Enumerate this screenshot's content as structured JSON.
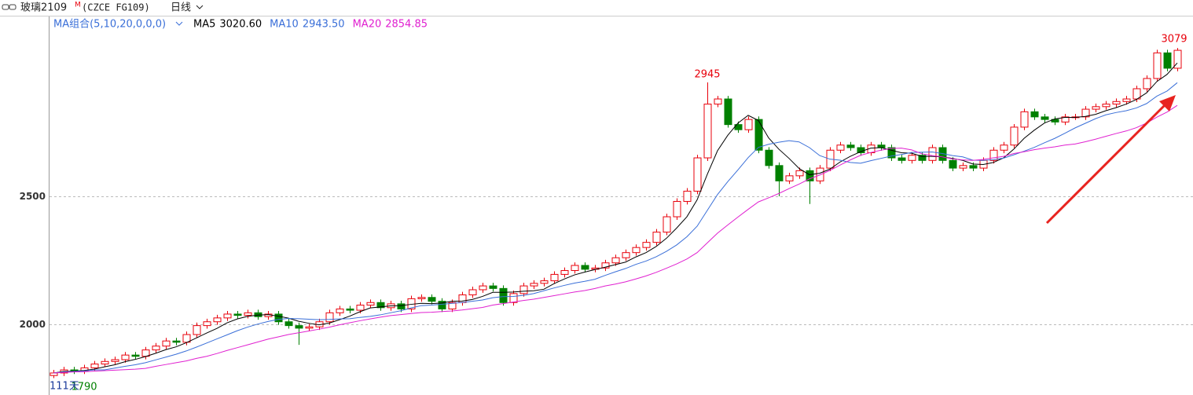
{
  "chart_data": {
    "type": "candlestick",
    "title": "玻璃2109",
    "title_sup": "M",
    "contract": "(CZCE FG109)",
    "period": "日线",
    "indicator_label": "MA组合(5,10,20,0,0,0)",
    "day_count": "111天",
    "up_color": "#e8000b",
    "down_color": "#008000",
    "ylim": [
      1724,
      3199
    ],
    "yticks": [
      2000,
      2500
    ],
    "grid": true,
    "open": [
      1800,
      1810,
      1822,
      1818,
      1830,
      1845,
      1855,
      1862,
      1880,
      1875,
      1900,
      1915,
      1935,
      1930,
      1960,
      1995,
      2010,
      2025,
      2040,
      2035,
      2045,
      2030,
      2040,
      2010,
      1995,
      1985,
      1990,
      2010,
      2045,
      2060,
      2055,
      2075,
      2085,
      2065,
      2080,
      2060,
      2100,
      2105,
      2090,
      2060,
      2085,
      2115,
      2135,
      2150,
      2140,
      2085,
      2120,
      2150,
      2160,
      2170,
      2195,
      2210,
      2230,
      2215,
      2220,
      2240,
      2260,
      2280,
      2300,
      2320,
      2360,
      2420,
      2480,
      2520,
      2650,
      2860,
      2880,
      2780,
      2760,
      2800,
      2680,
      2620,
      2560,
      2580,
      2600,
      2560,
      2610,
      2680,
      2700,
      2690,
      2670,
      2700,
      2690,
      2650,
      2640,
      2660,
      2640,
      2690,
      2640,
      2610,
      2620,
      2610,
      2640,
      2680,
      2700,
      2770,
      2830,
      2810,
      2800,
      2790,
      2810,
      2810,
      2840,
      2850,
      2860,
      2870,
      2880,
      2920,
      2960,
      3060,
      3000
    ],
    "close": [
      1810,
      1822,
      1818,
      1830,
      1845,
      1855,
      1862,
      1880,
      1875,
      1900,
      1915,
      1935,
      1930,
      1960,
      1995,
      2010,
      2025,
      2040,
      2035,
      2045,
      2030,
      2040,
      2010,
      1995,
      1985,
      1990,
      2010,
      2045,
      2060,
      2055,
      2075,
      2085,
      2065,
      2080,
      2060,
      2100,
      2105,
      2090,
      2060,
      2085,
      2115,
      2135,
      2150,
      2140,
      2085,
      2120,
      2150,
      2160,
      2170,
      2195,
      2210,
      2230,
      2215,
      2220,
      2240,
      2260,
      2280,
      2300,
      2320,
      2360,
      2420,
      2480,
      2520,
      2650,
      2860,
      2880,
      2780,
      2760,
      2800,
      2680,
      2620,
      2560,
      2580,
      2600,
      2560,
      2610,
      2680,
      2700,
      2690,
      2670,
      2700,
      2690,
      2650,
      2640,
      2660,
      2640,
      2690,
      2640,
      2610,
      2620,
      2610,
      2640,
      2680,
      2700,
      2770,
      2830,
      2810,
      2800,
      2790,
      2810,
      2810,
      2840,
      2850,
      2860,
      2870,
      2880,
      2920,
      2960,
      3060,
      3000,
      3070
    ],
    "high": [
      1822,
      1834,
      1834,
      1842,
      1857,
      1867,
      1874,
      1892,
      1892,
      1912,
      1927,
      1947,
      1947,
      1972,
      2007,
      2022,
      2037,
      2052,
      2052,
      2057,
      2057,
      2052,
      2052,
      2022,
      2007,
      2002,
      2022,
      2057,
      2072,
      2072,
      2087,
      2097,
      2097,
      2092,
      2092,
      2112,
      2117,
      2117,
      2102,
      2097,
      2127,
      2147,
      2162,
      2162,
      2152,
      2132,
      2162,
      2172,
      2182,
      2207,
      2222,
      2242,
      2242,
      2232,
      2252,
      2272,
      2292,
      2312,
      2332,
      2372,
      2432,
      2492,
      2532,
      2662,
      2945,
      2892,
      2892,
      2792,
      2812,
      2812,
      2692,
      2632,
      2592,
      2612,
      2612,
      2622,
      2692,
      2712,
      2712,
      2702,
      2712,
      2712,
      2702,
      2662,
      2672,
      2672,
      2702,
      2702,
      2652,
      2632,
      2632,
      2652,
      2692,
      2712,
      2782,
      2842,
      2842,
      2822,
      2812,
      2822,
      2822,
      2852,
      2862,
      2872,
      2882,
      2892,
      2932,
      2972,
      3072,
      3072,
      3079
    ],
    "low": [
      1790,
      1798,
      1806,
      1806,
      1818,
      1833,
      1843,
      1850,
      1863,
      1863,
      1888,
      1903,
      1918,
      1918,
      1948,
      1983,
      1998,
      2013,
      2023,
      2023,
      2018,
      2018,
      1998,
      1983,
      1920,
      1973,
      1978,
      1998,
      2033,
      2043,
      2043,
      2063,
      2053,
      2053,
      2048,
      2048,
      2088,
      2078,
      2048,
      2048,
      2073,
      2103,
      2123,
      2128,
      2073,
      2073,
      2108,
      2138,
      2148,
      2158,
      2183,
      2198,
      2203,
      2203,
      2208,
      2228,
      2248,
      2268,
      2288,
      2308,
      2348,
      2408,
      2468,
      2508,
      2638,
      2848,
      2768,
      2748,
      2748,
      2668,
      2608,
      2500,
      2548,
      2568,
      2470,
      2548,
      2598,
      2668,
      2678,
      2658,
      2658,
      2678,
      2638,
      2628,
      2628,
      2628,
      2628,
      2628,
      2598,
      2598,
      2598,
      2598,
      2628,
      2668,
      2688,
      2758,
      2798,
      2788,
      2778,
      2778,
      2798,
      2798,
      2828,
      2838,
      2848,
      2858,
      2868,
      2908,
      2948,
      2988,
      2988
    ],
    "series": [
      {
        "name": "MA5",
        "color": "#000000",
        "last_label": "3020.60",
        "values": [
          1810,
          1816,
          1817,
          1820,
          1825,
          1834,
          1842,
          1854,
          1863,
          1874,
          1887,
          1901,
          1912,
          1928,
          1947,
          1966,
          1984,
          2006,
          2021,
          2031,
          2036,
          2038,
          2032,
          2024,
          2012,
          2004,
          1998,
          2005,
          2018,
          2032,
          2049,
          2064,
          2068,
          2072,
          2073,
          2078,
          2082,
          2081,
          2083,
          2090,
          2091,
          2097,
          2109,
          2125,
          2125,
          2126,
          2129,
          2131,
          2137,
          2159,
          2177,
          2193,
          2204,
          2214,
          2223,
          2233,
          2243,
          2263,
          2280,
          2304,
          2336,
          2376,
          2420,
          2486,
          2586,
          2678,
          2738,
          2786,
          2816,
          2796,
          2728,
          2684,
          2648,
          2608,
          2584,
          2590,
          2606,
          2634,
          2656,
          2674,
          2688,
          2690,
          2680,
          2670,
          2668,
          2656,
          2656,
          2654,
          2648,
          2640,
          2626,
          2624,
          2632,
          2650,
          2684,
          2726,
          2758,
          2786,
          2802,
          2808,
          2808,
          2812,
          2820,
          2834,
          2846,
          2860,
          2878,
          2904,
          2948,
          2976,
          3020.6
        ]
      },
      {
        "name": "MA10",
        "color": "#3a6fd8",
        "last_label": "2943.50",
        "values": [
          1810,
          1814,
          1816,
          1818,
          1822,
          1822,
          1829,
          1836,
          1842,
          1850,
          1861,
          1872,
          1883,
          1896,
          1911,
          1927,
          1943,
          1959,
          1975,
          1989,
          2001,
          2011,
          2019,
          2023,
          2022,
          2020,
          2018,
          2019,
          2021,
          2022,
          2027,
          2031,
          2037,
          2045,
          2053,
          2064,
          2073,
          2075,
          2078,
          2082,
          2085,
          2090,
          2095,
          2104,
          2108,
          2109,
          2113,
          2120,
          2131,
          2142,
          2152,
          2161,
          2168,
          2176,
          2191,
          2205,
          2218,
          2234,
          2247,
          2264,
          2285,
          2310,
          2342,
          2383,
          2445,
          2507,
          2557,
          2603,
          2651,
          2691,
          2703,
          2711,
          2717,
          2712,
          2690,
          2659,
          2645,
          2641,
          2632,
          2629,
          2639,
          2648,
          2657,
          2663,
          2671,
          2672,
          2673,
          2667,
          2659,
          2654,
          2641,
          2640,
          2643,
          2649,
          2662,
          2676,
          2691,
          2709,
          2726,
          2746,
          2767,
          2785,
          2803,
          2818,
          2827,
          2834,
          2845,
          2862,
          2891,
          2911,
          2943.5
        ]
      },
      {
        "name": "MA20",
        "color": "#e020d0",
        "last_label": "2854.85",
        "values": [
          1810,
          1812,
          1814,
          1815,
          1817,
          1819,
          1821,
          1823,
          1825,
          1828,
          1836,
          1843,
          1850,
          1857,
          1867,
          1875,
          1886,
          1898,
          1909,
          1920,
          1931,
          1942,
          1951,
          1960,
          1967,
          1974,
          1981,
          1989,
          1998,
          2006,
          2014,
          2021,
          2028,
          2034,
          2038,
          2042,
          2046,
          2047,
          2050,
          2052,
          2056,
          2061,
          2066,
          2075,
          2081,
          2087,
          2093,
          2098,
          2105,
          2112,
          2119,
          2126,
          2132,
          2140,
          2150,
          2157,
          2166,
          2177,
          2189,
          2203,
          2219,
          2236,
          2255,
          2280,
          2318,
          2356,
          2388,
          2419,
          2449,
          2478,
          2494,
          2511,
          2530,
          2548,
          2568,
          2583,
          2601,
          2622,
          2642,
          2660,
          2671,
          2680,
          2687,
          2688,
          2681,
          2666,
          2659,
          2654,
          2646,
          2642,
          2640,
          2644,
          2650,
          2656,
          2667,
          2674,
          2682,
          2688,
          2693,
          2700,
          2704,
          2713,
          2723,
          2734,
          2745,
          2755,
          2768,
          2786,
          2809,
          2829,
          2854.85
        ]
      }
    ]
  }
}
